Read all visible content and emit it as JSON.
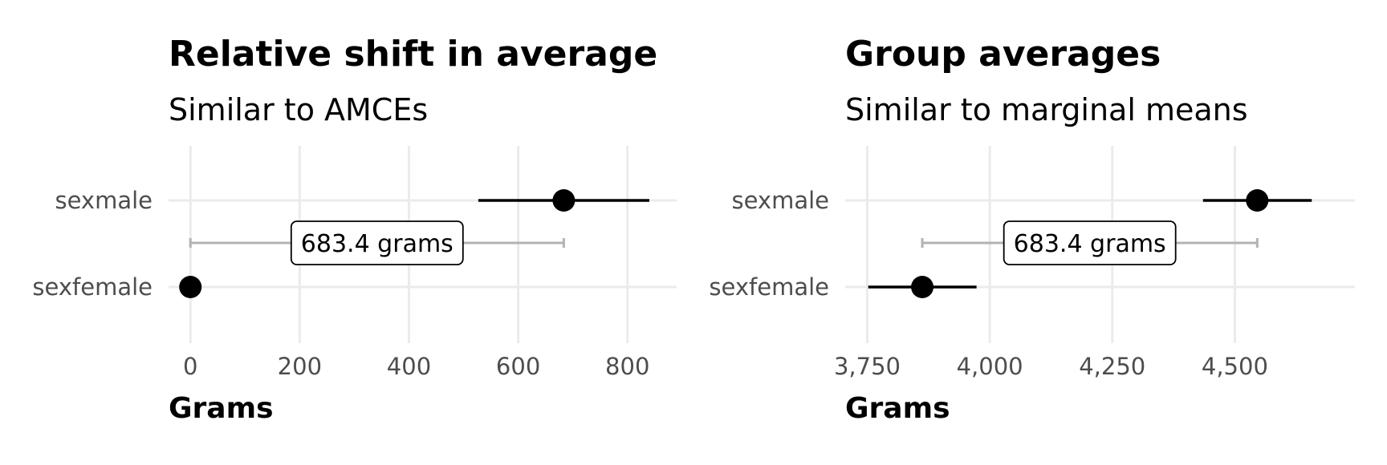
{
  "chart_data": [
    {
      "type": "scatter",
      "title": "Relative shift in average",
      "subtitle": "Similar to AMCEs",
      "xlabel": "Grams",
      "xlim": [
        -40,
        890
      ],
      "xticks": [
        0,
        200,
        400,
        600,
        800
      ],
      "xtick_labels": [
        "0",
        "200",
        "400",
        "600",
        "800"
      ],
      "categories": [
        "sexmale",
        "sexfemale"
      ],
      "points": [
        {
          "category": "sexmale",
          "estimate": 683.4,
          "lower": 527,
          "upper": 840
        },
        {
          "category": "sexfemale",
          "estimate": 0,
          "lower": null,
          "upper": null
        }
      ],
      "annotation": {
        "text": "683.4 grams",
        "from": 0,
        "to": 683.4
      },
      "grid": true
    },
    {
      "type": "scatter",
      "title": "Group averages",
      "subtitle": "Similar to marginal means",
      "xlabel": "Grams",
      "xlim": [
        3705,
        4745
      ],
      "xticks": [
        3750,
        4000,
        4250,
        4500
      ],
      "xtick_labels": [
        "3,750",
        "4,000",
        "4,250",
        "4,500"
      ],
      "categories": [
        "sexmale",
        "sexfemale"
      ],
      "points": [
        {
          "category": "sexmale",
          "estimate": 4545.7,
          "lower": 4435,
          "upper": 4657
        },
        {
          "category": "sexfemale",
          "estimate": 3862.3,
          "lower": 3752,
          "upper": 3973
        }
      ],
      "annotation": {
        "text": "683.4 grams",
        "from": 3862.3,
        "to": 4545.7
      },
      "grid": true
    }
  ]
}
